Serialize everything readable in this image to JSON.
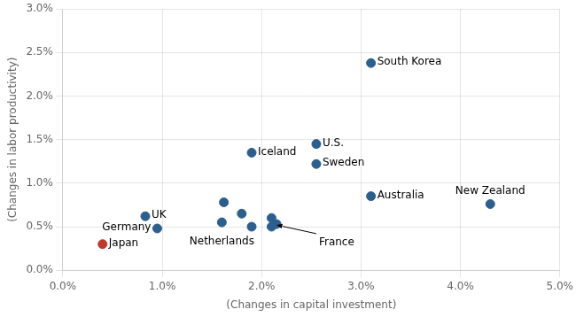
{
  "chart_data": {
    "type": "scatter",
    "xlabel": "(Changes in capital investment)",
    "ylabel": "(Changes in labor productivity)",
    "x": [
      0.0162,
      0.018,
      0.019,
      0.021,
      0.0215,
      0.004,
      0.0083,
      0.0095,
      0.016,
      0.019,
      0.0255,
      0.0255,
      0.021,
      0.031,
      0.031,
      0.043
    ],
    "values": [
      0.0078,
      0.0065,
      0.005,
      0.006,
      0.0053,
      0.003,
      0.0062,
      0.0048,
      0.0055,
      0.0135,
      0.0145,
      0.0122,
      0.005,
      0.0238,
      0.0085,
      0.0076
    ],
    "point_labels": [
      null,
      null,
      null,
      null,
      null,
      "Japan",
      "UK",
      "Germany",
      "Netherlands",
      "Iceland",
      "U.S.",
      "Sweden",
      null,
      "South Korea",
      "Australia",
      "New Zealand"
    ],
    "colors": [
      "#2b5f8e",
      "#2b5f8e",
      "#2b5f8e",
      "#2b5f8e",
      "#2b5f8e",
      "#c0392b",
      "#2b5f8e",
      "#2b5f8e",
      "#2b5f8e",
      "#2b5f8e",
      "#2b5f8e",
      "#2b5f8e",
      "#2b5f8e",
      "#2b5f8e",
      "#2b5f8e",
      "#2b5f8e"
    ],
    "annotations": [
      {
        "text": "France",
        "x": 0.0255,
        "y": 0.0042,
        "arrow_to": {
          "x": 0.0215,
          "y": 0.0052
        }
      }
    ],
    "xlim": [
      0.0,
      0.05
    ],
    "ylim": [
      0.0,
      0.03
    ],
    "xticks": [
      {
        "value": 0.0,
        "label": "0.0%"
      },
      {
        "value": 0.01,
        "label": "1.0%"
      },
      {
        "value": 0.02,
        "label": "2.0%"
      },
      {
        "value": 0.03,
        "label": "3.0%"
      },
      {
        "value": 0.04,
        "label": "4.0%"
      },
      {
        "value": 0.05,
        "label": "5.0%"
      }
    ],
    "yticks": [
      {
        "value": 0.0,
        "label": "0.0%"
      },
      {
        "value": 0.005,
        "label": "0.5%"
      },
      {
        "value": 0.01,
        "label": "1.0%"
      },
      {
        "value": 0.015,
        "label": "1.5%"
      },
      {
        "value": 0.02,
        "label": "2.0%"
      },
      {
        "value": 0.025,
        "label": "2.5%"
      },
      {
        "value": 0.03,
        "label": "3.0%"
      }
    ],
    "grid": true
  }
}
